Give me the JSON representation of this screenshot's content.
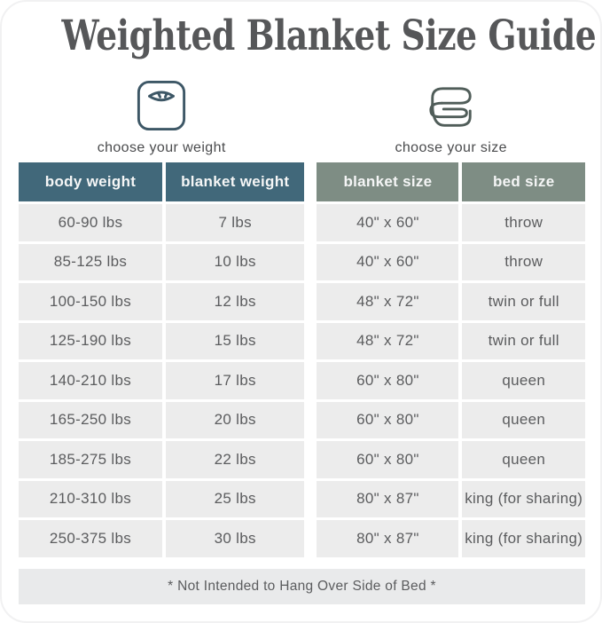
{
  "title": "Weighted Blanket Size Guide",
  "footer_note": "* Not Intended to Hang Over Side of Bed *",
  "icons": {
    "weight": "scale-icon",
    "size": "blanket-icon"
  },
  "colors": {
    "header_left_bg": "#41687a",
    "header_right_bg": "#7e8d84",
    "header_text": "#f5f6f6",
    "row_bg": "#ececec",
    "row_text": "#5b5c5e",
    "title_text": "#565759",
    "caption_text": "#4a4b4d",
    "footer_bg": "#e9eaeb",
    "scale_icon_stroke": "#3d5766",
    "blanket_icon_stroke": "#505d59"
  },
  "chart_data": [
    {
      "type": "table",
      "section_caption": "choose your weight",
      "icon": "scale-icon",
      "columns": [
        "body weight",
        "blanket weight"
      ],
      "rows": [
        [
          "60-90 lbs",
          "7 lbs"
        ],
        [
          "85-125 lbs",
          "10 lbs"
        ],
        [
          "100-150 lbs",
          "12 lbs"
        ],
        [
          "125-190 lbs",
          "15 lbs"
        ],
        [
          "140-210 lbs",
          "17 lbs"
        ],
        [
          "165-250 lbs",
          "20 lbs"
        ],
        [
          "185-275 lbs",
          "22 lbs"
        ],
        [
          "210-310 lbs",
          "25 lbs"
        ],
        [
          "250-375 lbs",
          "30 lbs"
        ]
      ]
    },
    {
      "type": "table",
      "section_caption": "choose your size",
      "icon": "blanket-icon",
      "columns": [
        "blanket size",
        "bed size"
      ],
      "rows": [
        [
          "40\" x 60\"",
          "throw"
        ],
        [
          "40\" x 60\"",
          "throw"
        ],
        [
          "48\" x 72\"",
          "twin or full"
        ],
        [
          "48\" x 72\"",
          "twin or full"
        ],
        [
          "60\" x 80\"",
          "queen"
        ],
        [
          "60\" x 80\"",
          "queen"
        ],
        [
          "60\" x 80\"",
          "queen"
        ],
        [
          "80\" x 87\"",
          "king (for sharing)"
        ],
        [
          "80\" x 87\"",
          "king (for sharing)"
        ]
      ]
    }
  ]
}
